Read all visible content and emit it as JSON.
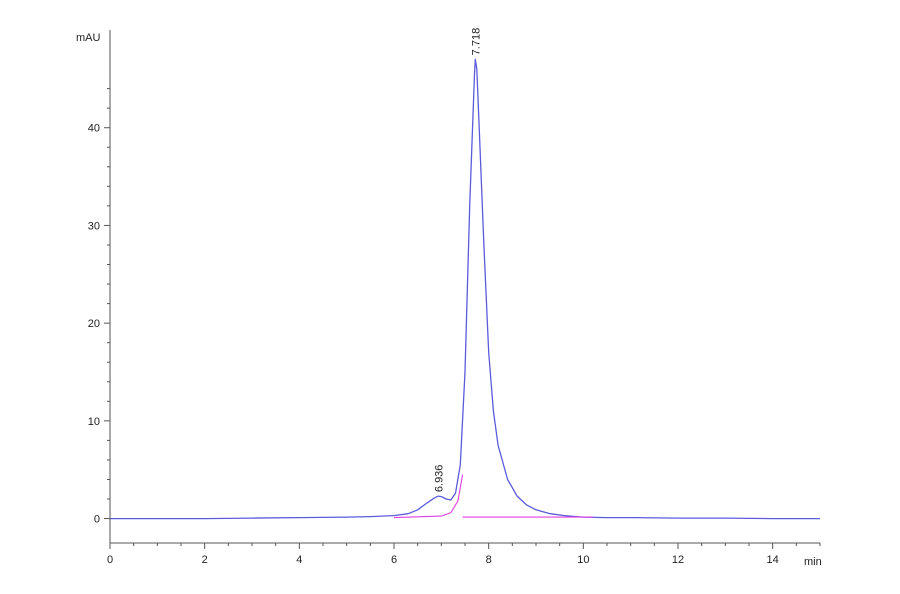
{
  "chart_data": {
    "type": "line",
    "title": "",
    "xlabel": "min",
    "ylabel": "mAU",
    "xlim": [
      0,
      15
    ],
    "ylim": [
      -2.5,
      50
    ],
    "x_ticks": [
      0,
      2,
      4,
      6,
      8,
      10,
      12,
      14
    ],
    "y_ticks": [
      0,
      10,
      20,
      30,
      40
    ],
    "grid": false,
    "legend": "none",
    "colors": {
      "signal": "#5b5bdc",
      "baseline": "#e040e0",
      "axis": "#555555"
    },
    "series": [
      {
        "x": [
          0.0,
          1.0,
          2.0,
          3.0,
          4.0,
          5.0,
          5.5,
          6.0,
          6.3,
          6.5,
          6.7,
          6.85,
          6.936,
          7.0,
          7.1,
          7.2,
          7.3,
          7.4,
          7.5,
          7.6,
          7.7,
          7.718,
          7.75,
          7.8,
          7.9,
          8.0,
          8.1,
          8.2,
          8.4,
          8.6,
          8.8,
          9.0,
          9.3,
          9.6,
          10.0,
          10.5,
          11.0,
          12.0,
          13.0,
          14.0,
          15.0
        ],
        "y": [
          0.0,
          0.0,
          0.0,
          0.05,
          0.1,
          0.15,
          0.2,
          0.3,
          0.5,
          0.9,
          1.6,
          2.1,
          2.3,
          2.25,
          2.0,
          1.9,
          2.6,
          5.5,
          15.0,
          32.0,
          45.5,
          47.0,
          46.0,
          40.0,
          28.0,
          17.0,
          11.0,
          7.5,
          4.0,
          2.3,
          1.4,
          0.9,
          0.5,
          0.3,
          0.15,
          0.1,
          0.1,
          0.05,
          0.05,
          0.0,
          0.0
        ]
      }
    ],
    "baseline_segments": [
      {
        "x": [
          6.0,
          7.0,
          7.2,
          7.35,
          7.45
        ],
        "y": [
          0.1,
          0.25,
          0.6,
          1.8,
          4.5
        ]
      },
      {
        "x": [
          7.45,
          10.2
        ],
        "y": [
          0.15,
          0.15
        ]
      }
    ],
    "peaks": [
      {
        "time": 6.936,
        "height": 2.3,
        "label": "6.936"
      },
      {
        "time": 7.718,
        "height": 47.0,
        "label": "7.718"
      }
    ]
  }
}
